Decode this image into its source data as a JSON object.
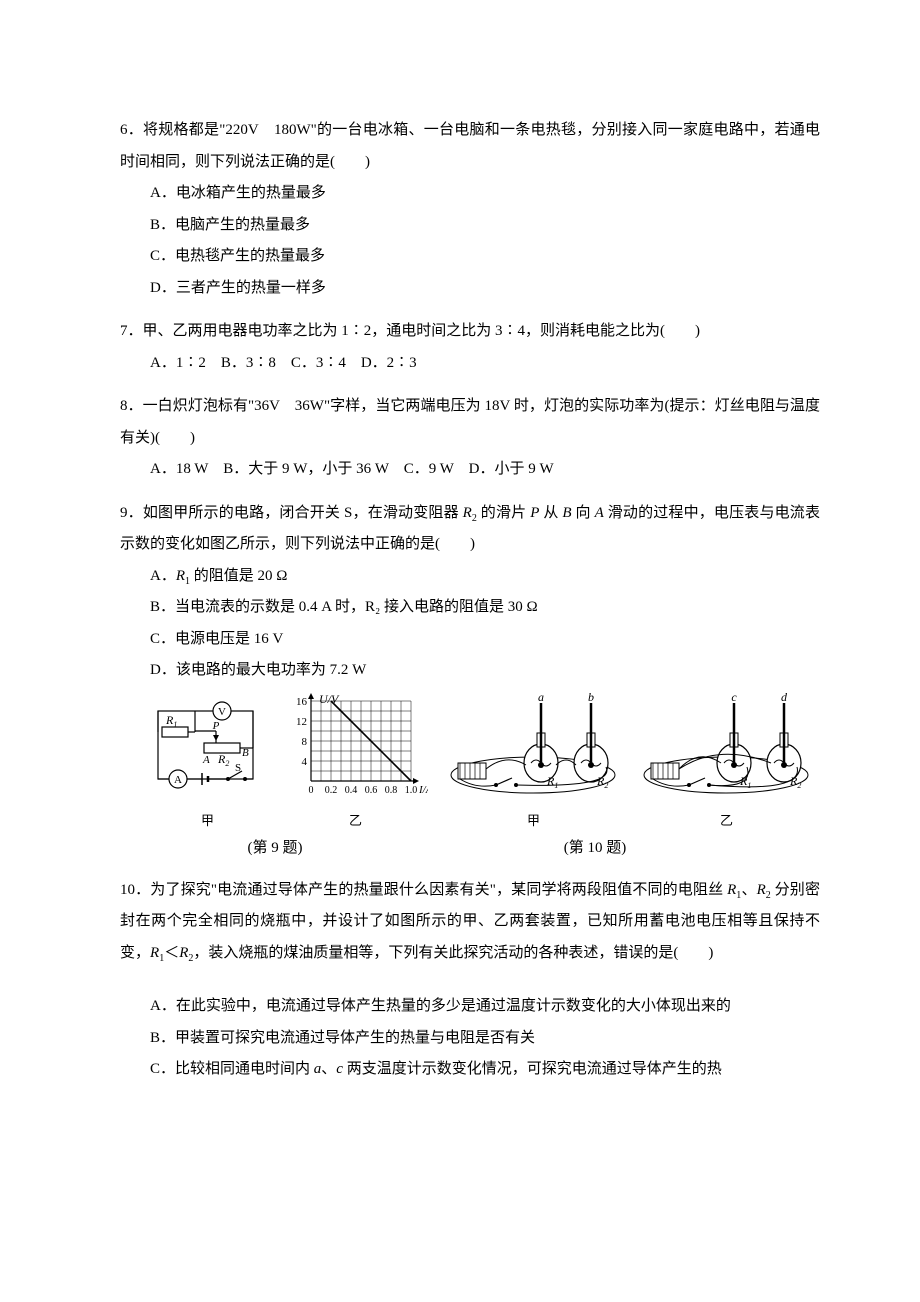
{
  "q6": {
    "num": "6．",
    "stem": "将规格都是\"220V　180W\"的一台电冰箱、一台电脑和一条电热毯，分别接入同一家庭电路中，若通电时间相同，则下列说法正确的是(　　)",
    "a": "A．电冰箱产生的热量最多",
    "b": "B．电脑产生的热量最多",
    "c": "C．电热毯产生的热量最多",
    "d": "D．三者产生的热量一样多"
  },
  "q7": {
    "num": "7．",
    "stem": "甲、乙两用电器电功率之比为 1∶2，通电时间之比为 3∶4，则消耗电能之比为(　　)",
    "opts": "A．1∶2　B．3∶8　C．3∶4　D．2∶3"
  },
  "q8": {
    "num": "8．",
    "stem": "一白炽灯泡标有\"36V　36W\"字样，当它两端电压为 18V 时，灯泡的实际功率为(提示：灯丝电阻与温度有关)(　　)",
    "opts": "A．18 W　B．大于 9 W，小于 36 W　C．9 W　D．小于 9 W"
  },
  "q9": {
    "num": "9．",
    "stem_p1": "如图甲所示的电路，闭合开关 S，在滑动变阻器 ",
    "stem_r2": "R",
    "stem_r2sub": "2",
    "stem_p2": " 的滑片 ",
    "stem_P": "P",
    "stem_p3": " 从 ",
    "stem_B": "B",
    "stem_p4": " 向 ",
    "stem_A": "A",
    "stem_p5": " 滑动的过程中，电压表与电流表示数的变化如图乙所示，则下列说法中正确的是(　　)",
    "a_pre": "A．",
    "a_r1": "R",
    "a_r1sub": "1",
    "a_post": " 的阻值是 20 Ω",
    "b": "B．当电流表的示数是 0.4 A 时，R₂ 接入电路的阻值是 30 Ω",
    "c": "C．电源电压是 16 V",
    "d": "D．该电路的最大电功率为 7.2 W",
    "circuit": {
      "V_label": "V",
      "A_label": "A",
      "R1": "R",
      "R1sub": "1",
      "R2": "R",
      "R2sub": "2",
      "P": "P",
      "A_pt": "A",
      "B_pt": "B",
      "S": "S",
      "sub": "甲"
    },
    "graph": {
      "ylabel": "U/V",
      "xlabel": "I/A",
      "yticks": [
        "4",
        "8",
        "12",
        "16"
      ],
      "xticks": [
        "0",
        "0.2",
        "0.4",
        "0.6",
        "0.8",
        "1.0"
      ],
      "line_start_x": 0.2,
      "line_start_y": 16,
      "line_end_x": 1.0,
      "line_end_y": 0,
      "sub": "乙",
      "grid_color": "#000000",
      "bg": "#ffffff"
    },
    "exp": {
      "a": "a",
      "b": "b",
      "c": "c",
      "d": "d",
      "R1": "R",
      "R1sub": "1",
      "R2": "R",
      "R2sub": "2",
      "sub1": "甲",
      "sub2": "乙"
    },
    "caption": "(第 9 题)",
    "caption2": "(第 10 题)"
  },
  "q10": {
    "num": "10．",
    "stem_p1": "为了探究\"电流通过导体产生的热量跟什么因素有关\"，某同学将两段阻值不同的电阻丝 ",
    "r1": "R",
    "r1sub": "1",
    "stem_p2": "、",
    "r2": "R",
    "r2sub": "2",
    "stem_p3": " 分别密封在两个完全相同的烧瓶中，并设计了如图所示的甲、乙两套装置，已知所用蓄电池电压相等且保持不变，",
    "ineq_r1": "R",
    "ineq_r1sub": "1",
    "ineq": "＜",
    "ineq_r2": "R",
    "ineq_r2sub": "2",
    "stem_p4": "，装入烧瓶的煤油质量相等，下列有关此探究活动的各种表述，错误的是(　　)",
    "a": "A．在此实验中，电流通过导体产生热量的多少是通过温度计示数变化的大小体现出来的",
    "b": "B．甲装置可探究电流通过导体产生的热量与电阻是否有关",
    "c_pre": "C．比较相同通电时间内 ",
    "c_a": "a",
    "c_mid": "、",
    "c_c": "c",
    "c_post": " 两支温度计示数变化情况，可探究电流通过导体产生的热"
  },
  "colors": {
    "text": "#000000",
    "line": "#000000",
    "bg": "#ffffff"
  }
}
